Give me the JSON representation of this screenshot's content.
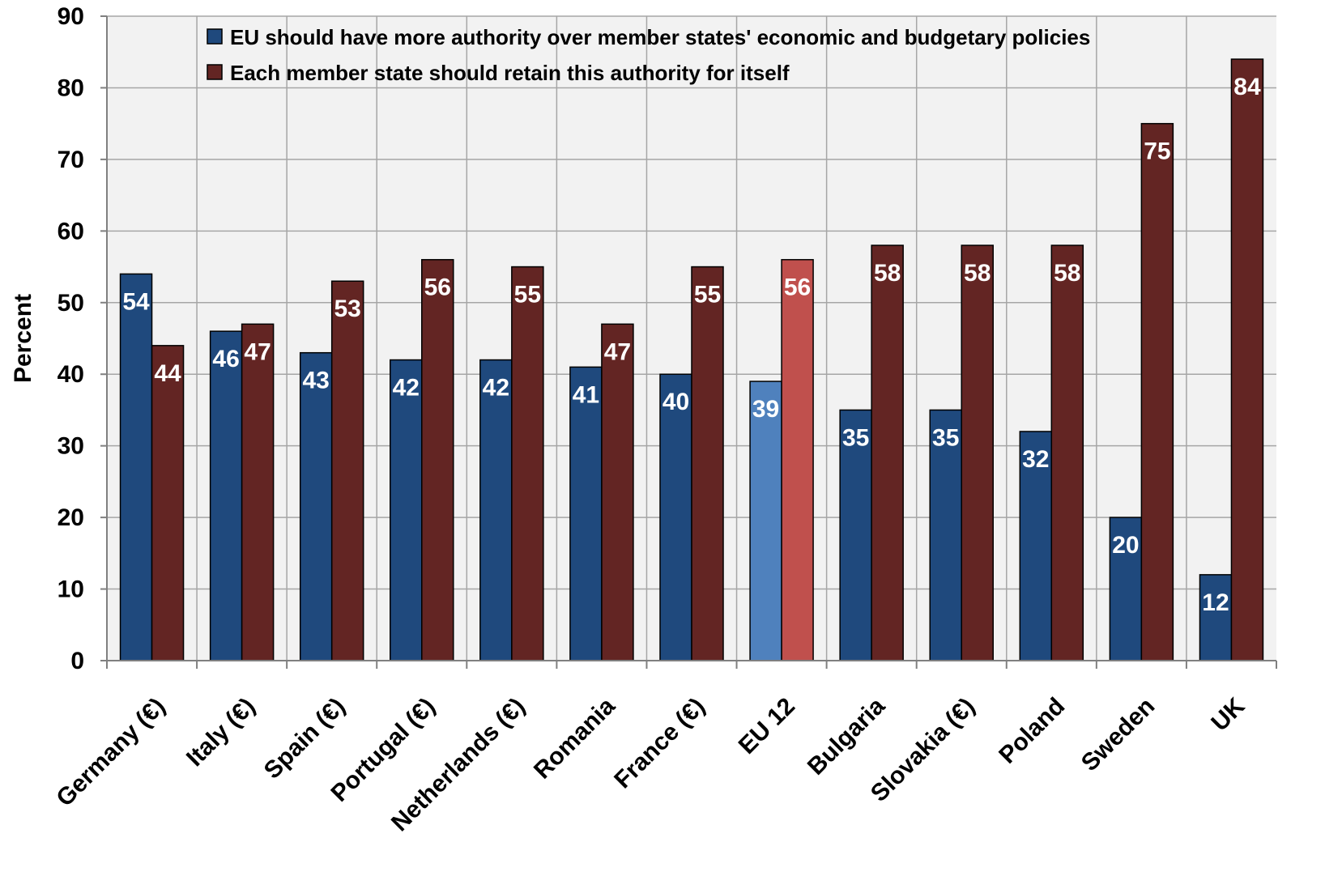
{
  "chart_data": {
    "type": "bar",
    "title": "",
    "xlabel": "",
    "ylabel": "Percent",
    "ylim": [
      0,
      90
    ],
    "yticks": [
      0,
      10,
      20,
      30,
      40,
      50,
      60,
      70,
      80,
      90
    ],
    "grid": true,
    "legend_position": "top-left",
    "categories": [
      "Germany (€)",
      "Italy (€)",
      "Spain (€)",
      "Portugal (€)",
      "Netherlands (€)",
      "Romania",
      "France (€)",
      "EU 12",
      "Bulgaria",
      "Slovakia (€)",
      "Poland",
      "Sweden",
      "UK"
    ],
    "highlight_category": "EU 12",
    "series": [
      {
        "name": "EU should have more authority over member states' economic and budgetary policies",
        "color": "#1f497d",
        "highlight_color": "#4f81bd",
        "values": [
          54,
          46,
          43,
          42,
          42,
          41,
          40,
          39,
          35,
          35,
          32,
          20,
          12
        ]
      },
      {
        "name": "Each member state should retain this authority for itself",
        "color": "#632523",
        "highlight_color": "#c0504d",
        "values": [
          44,
          47,
          53,
          56,
          55,
          47,
          55,
          56,
          58,
          58,
          58,
          75,
          84
        ]
      }
    ],
    "plot_background": "#f2f2f2",
    "grid_color": "#a6a6a6"
  }
}
